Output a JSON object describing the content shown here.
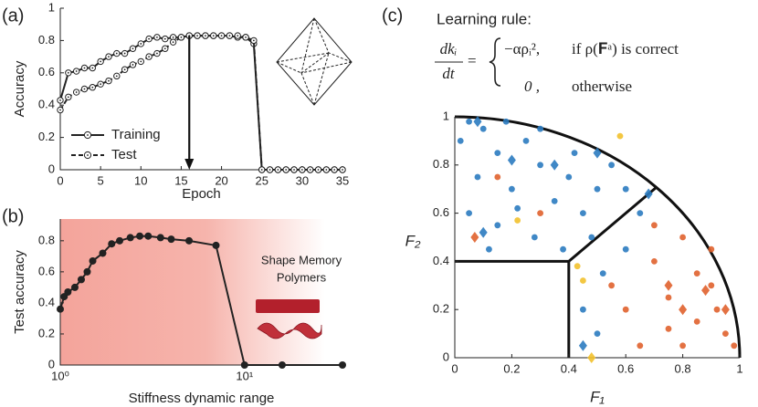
{
  "panel_labels": [
    "(a)",
    "(b)",
    "(c)"
  ],
  "chart_data": [
    {
      "type": "line",
      "xlabel": "Epoch",
      "ylabel": "Accuracy",
      "x": [
        0,
        1,
        2,
        3,
        4,
        5,
        6,
        7,
        8,
        9,
        10,
        11,
        12,
        13,
        14,
        15,
        16,
        17,
        18,
        19,
        20,
        21,
        22,
        23,
        24,
        25,
        26,
        27,
        28,
        29,
        30,
        31,
        32,
        33,
        34,
        35
      ],
      "series": [
        {
          "name": "Training",
          "color": "#222222",
          "linestyle": "solid",
          "marker": "open-circle",
          "values": [
            0.43,
            0.6,
            0.61,
            0.63,
            0.63,
            0.67,
            0.7,
            0.72,
            0.72,
            0.75,
            0.78,
            0.81,
            0.82,
            0.81,
            0.82,
            0.82,
            0.83,
            0.83,
            0.83,
            0.83,
            0.83,
            0.83,
            0.82,
            0.82,
            0.78,
            0,
            0,
            0,
            0,
            0,
            0,
            0,
            0,
            0,
            0,
            0
          ]
        },
        {
          "name": "Test",
          "color": "#222222",
          "linestyle": "dashed",
          "marker": "open-circle",
          "values": [
            0.37,
            0.45,
            0.48,
            0.5,
            0.51,
            0.53,
            0.55,
            0.58,
            0.62,
            0.65,
            0.67,
            0.7,
            0.72,
            0.75,
            0.79,
            0.82,
            0.83,
            0.83,
            0.83,
            0.83,
            0.83,
            0.83,
            0.83,
            0.82,
            0.8,
            0,
            0,
            0,
            0,
            0,
            0,
            0,
            0,
            0,
            0,
            0
          ]
        }
      ],
      "arrow": {
        "x": 16,
        "y": [
          0.83,
          0
        ]
      },
      "xlim": [
        0,
        35
      ],
      "xticks": [
        0,
        5,
        10,
        15,
        20,
        25,
        30,
        35
      ],
      "ylim": [
        0,
        1
      ],
      "yticks": [
        0,
        0.2,
        0.4,
        0.6,
        0.8,
        1
      ],
      "legend": "lower left"
    },
    {
      "type": "line",
      "xlabel": "Stiffness dynamic range",
      "ylabel": "Test accuracy",
      "xscale": "log",
      "annotation": [
        "Shape Memory",
        "Polymers"
      ],
      "x": [
        1,
        1.05,
        1.1,
        1.2,
        1.3,
        1.4,
        1.5,
        1.7,
        1.9,
        2.1,
        2.4,
        2.7,
        3,
        3.5,
        4,
        5,
        7,
        10,
        16,
        34
      ],
      "series": [
        {
          "color": "#222222",
          "linestyle": "solid",
          "marker": "filled-circle",
          "values": [
            0.36,
            0.44,
            0.47,
            0.5,
            0.55,
            0.6,
            0.67,
            0.72,
            0.78,
            0.8,
            0.82,
            0.83,
            0.83,
            0.82,
            0.81,
            0.8,
            0.77,
            0,
            0,
            0
          ]
        }
      ],
      "xlim": [
        1,
        34
      ],
      "xticks": [
        {
          "value": 1,
          "label": "10⁰"
        },
        {
          "value": 10,
          "label": "10¹"
        }
      ],
      "ylim": [
        0,
        0.94
      ],
      "yticks": [
        0,
        0.2,
        0.4,
        0.6,
        0.8
      ]
    },
    {
      "type": "scatter",
      "xlabel": "F₁",
      "ylabel": "F₂",
      "equation": {
        "title": "Learning rule:",
        "num": "dkᵢ",
        "den": "dt",
        "eq": "=",
        "case1": "−αρᵢ²,",
        "cond1": "if ρ(𝐅ᵃ) is correct",
        "case2": "0  ,",
        "cond2": "otherwise"
      },
      "series": [
        {
          "color": "#2b7bc0",
          "marker": "circle",
          "x": [
            0.05,
            0.1,
            0.02,
            0.15,
            0.25,
            0.3,
            0.08,
            0.2,
            0.35,
            0.05,
            0.15,
            0.28,
            0.38,
            0.45,
            0.5,
            0.55,
            0.6,
            0.42,
            0.12,
            0.3,
            0.48,
            0.52,
            0.45,
            0.5,
            0.6,
            0.65,
            0.22,
            0.4,
            0.18
          ],
          "y": [
            0.98,
            0.95,
            0.9,
            0.85,
            0.9,
            0.8,
            0.75,
            0.7,
            0.65,
            0.6,
            0.55,
            0.5,
            0.45,
            0.6,
            0.7,
            0.8,
            0.7,
            0.85,
            0.45,
            0.95,
            0.5,
            0.35,
            0.2,
            0.1,
            0.45,
            0.6,
            0.62,
            0.75,
            0.98
          ]
        },
        {
          "color": "#2b7bc0",
          "marker": "diamond",
          "x": [
            0.08,
            0.2,
            0.35,
            0.5,
            0.1,
            0.68,
            0.45
          ],
          "y": [
            0.98,
            0.82,
            0.8,
            0.85,
            0.52,
            0.68,
            0.05
          ]
        },
        {
          "color": "#e0622d",
          "marker": "circle",
          "x": [
            0.7,
            0.8,
            0.9,
            0.85,
            0.95,
            0.75,
            0.6,
            0.65,
            0.9,
            0.98,
            0.7,
            0.8,
            0.55,
            0.85,
            0.15,
            0.3,
            0.75,
            0.92
          ],
          "y": [
            0.4,
            0.5,
            0.3,
            0.15,
            0.1,
            0.25,
            0.2,
            0.05,
            0.45,
            0.05,
            0.55,
            0.05,
            0.3,
            0.35,
            0.75,
            0.6,
            0.12,
            0.2
          ]
        },
        {
          "color": "#e0622d",
          "marker": "diamond",
          "x": [
            0.75,
            0.88,
            0.8,
            0.07,
            0.95
          ],
          "y": [
            0.3,
            0.28,
            0.2,
            0.5,
            0.2
          ]
        },
        {
          "color": "#f2c12e",
          "marker": "circle",
          "x": [
            0.22,
            0.43,
            0.58,
            0.45
          ],
          "y": [
            0.57,
            0.38,
            0.92,
            0.32
          ]
        },
        {
          "color": "#f2c12e",
          "marker": "diamond",
          "x": [
            0.48
          ],
          "y": [
            0
          ]
        }
      ],
      "xlim": [
        0,
        1
      ],
      "xticks": [
        0,
        0.2,
        0.4,
        0.6,
        0.8,
        1
      ],
      "ylim": [
        0,
        1
      ],
      "yticks": [
        0,
        0.2,
        0.4,
        0.6,
        0.8,
        1
      ]
    }
  ]
}
